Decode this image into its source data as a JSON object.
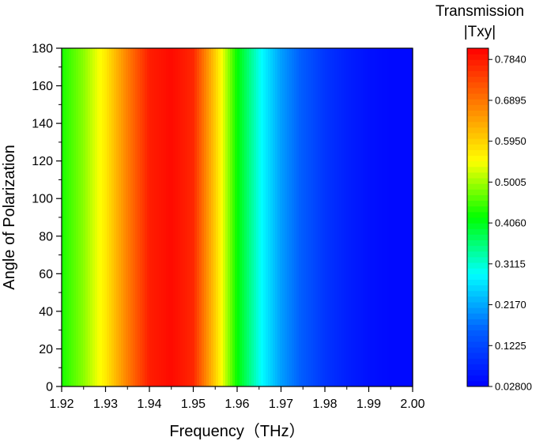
{
  "chart_data": {
    "type": "heatmap",
    "xlabel": "Frequency（THz）",
    "ylabel": "Angle of Polarization",
    "xlim": [
      1.92,
      2.0
    ],
    "ylim": [
      0,
      180
    ],
    "x_ticks": [
      "1.92",
      "1.93",
      "1.94",
      "1.95",
      "1.96",
      "1.97",
      "1.98",
      "1.99",
      "2.00"
    ],
    "y_ticks": [
      "0",
      "20",
      "40",
      "60",
      "80",
      "100",
      "120",
      "140",
      "160",
      "180"
    ],
    "colorbar": {
      "title_line1": "Transmission",
      "title_line2": "|Txy|",
      "min": 0.028,
      "max": 0.81,
      "ticks": [
        "0.02800",
        "0.1225",
        "0.2170",
        "0.3115",
        "0.4060",
        "0.5005",
        "0.5950",
        "0.6895",
        "0.7840"
      ],
      "colors": [
        "#0000ff",
        "#0060ff",
        "#00ffff",
        "#00ff00",
        "#ffff00",
        "#ff7f00",
        "#ff0000"
      ]
    },
    "x": [
      1.92,
      1.925,
      1.93,
      1.935,
      1.94,
      1.945,
      1.95,
      1.955,
      1.96,
      1.965,
      1.97,
      1.975,
      1.98,
      1.985,
      1.99,
      1.995,
      2.0
    ],
    "values": [
      0.43,
      0.49,
      0.57,
      0.68,
      0.78,
      0.8,
      0.77,
      0.6,
      0.42,
      0.3,
      0.21,
      0.15,
      0.1,
      0.07,
      0.05,
      0.04,
      0.04
    ],
    "note_values": "Transmission |Txy| is independent of the angle of polarization; values vary with frequency only."
  }
}
